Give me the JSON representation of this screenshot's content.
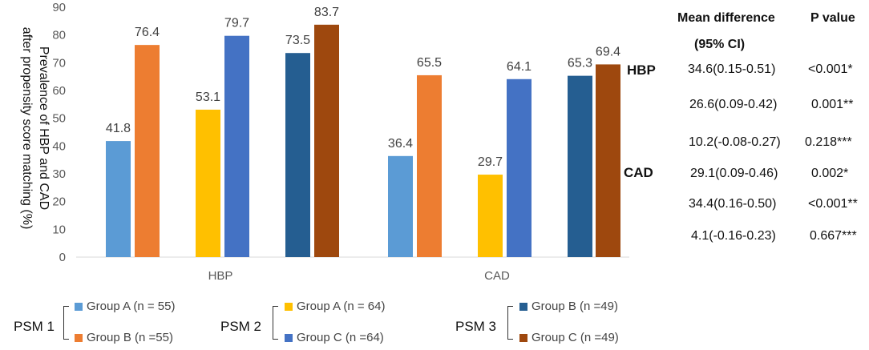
{
  "chart_data": {
    "type": "bar",
    "ylabel_lines": [
      "Prevalence of HBP and CAD",
      "after propensity score matching (%)"
    ],
    "ylim": [
      0,
      90
    ],
    "yticks": [
      0,
      10,
      20,
      30,
      40,
      50,
      60,
      70,
      80,
      90
    ],
    "categories": [
      "HBP",
      "CAD"
    ],
    "series": [
      {
        "name": "PSM 1 Group A (n = 55)",
        "color": "#5B9BD5",
        "values": [
          41.8,
          36.4
        ]
      },
      {
        "name": "PSM 1 Group B (n =55)",
        "color": "#ED7D31",
        "values": [
          76.4,
          65.5
        ]
      },
      {
        "name": "PSM 2 Group A (n = 64)",
        "color": "#FFC000",
        "values": [
          53.1,
          29.7
        ]
      },
      {
        "name": "PSM 2 Group C (n =64)",
        "color": "#4472C4",
        "values": [
          79.7,
          64.1
        ]
      },
      {
        "name": "PSM 3 Group B (n =49)",
        "color": "#255E91",
        "values": [
          73.5,
          65.3
        ]
      },
      {
        "name": "PSM 3 Group C (n =49)",
        "color": "#9E480E",
        "values": [
          83.7,
          69.4
        ]
      }
    ]
  },
  "stats": {
    "header_mean": "Mean difference",
    "header_p": "P value",
    "header_ci": "(95% CI)",
    "groups": [
      "HBP",
      "CAD"
    ],
    "rows": [
      {
        "mean": "34.6(0.15-0.51)",
        "p": "<0.001*"
      },
      {
        "mean": "26.6(0.09-0.42)",
        "p": "0.001**"
      },
      {
        "mean": "10.2(-0.08-0.27)",
        "p": "0.218***"
      },
      {
        "mean": "29.1(0.09-0.46)",
        "p": "0.002*"
      },
      {
        "mean": "34.4(0.16-0.50)",
        "p": "<0.001**"
      },
      {
        "mean": "4.1(-0.16-0.23)",
        "p": "0.667***"
      }
    ]
  },
  "legend": {
    "psm1": {
      "label": "PSM 1",
      "a": "Group A (n = 55)",
      "b": "Group B (n =55)"
    },
    "psm2": {
      "label": "PSM 2",
      "a": "Group A (n = 64)",
      "b": "Group C (n =64)"
    },
    "psm3": {
      "label": "PSM 3",
      "a": "Group B (n =49)",
      "b": "Group C (n =49)"
    }
  },
  "colors": {
    "psm1_a": "#5B9BD5",
    "psm1_b": "#ED7D31",
    "psm2_a": "#FFC000",
    "psm2_b": "#4472C4",
    "psm3_a": "#255E91",
    "psm3_b": "#9E480E"
  }
}
